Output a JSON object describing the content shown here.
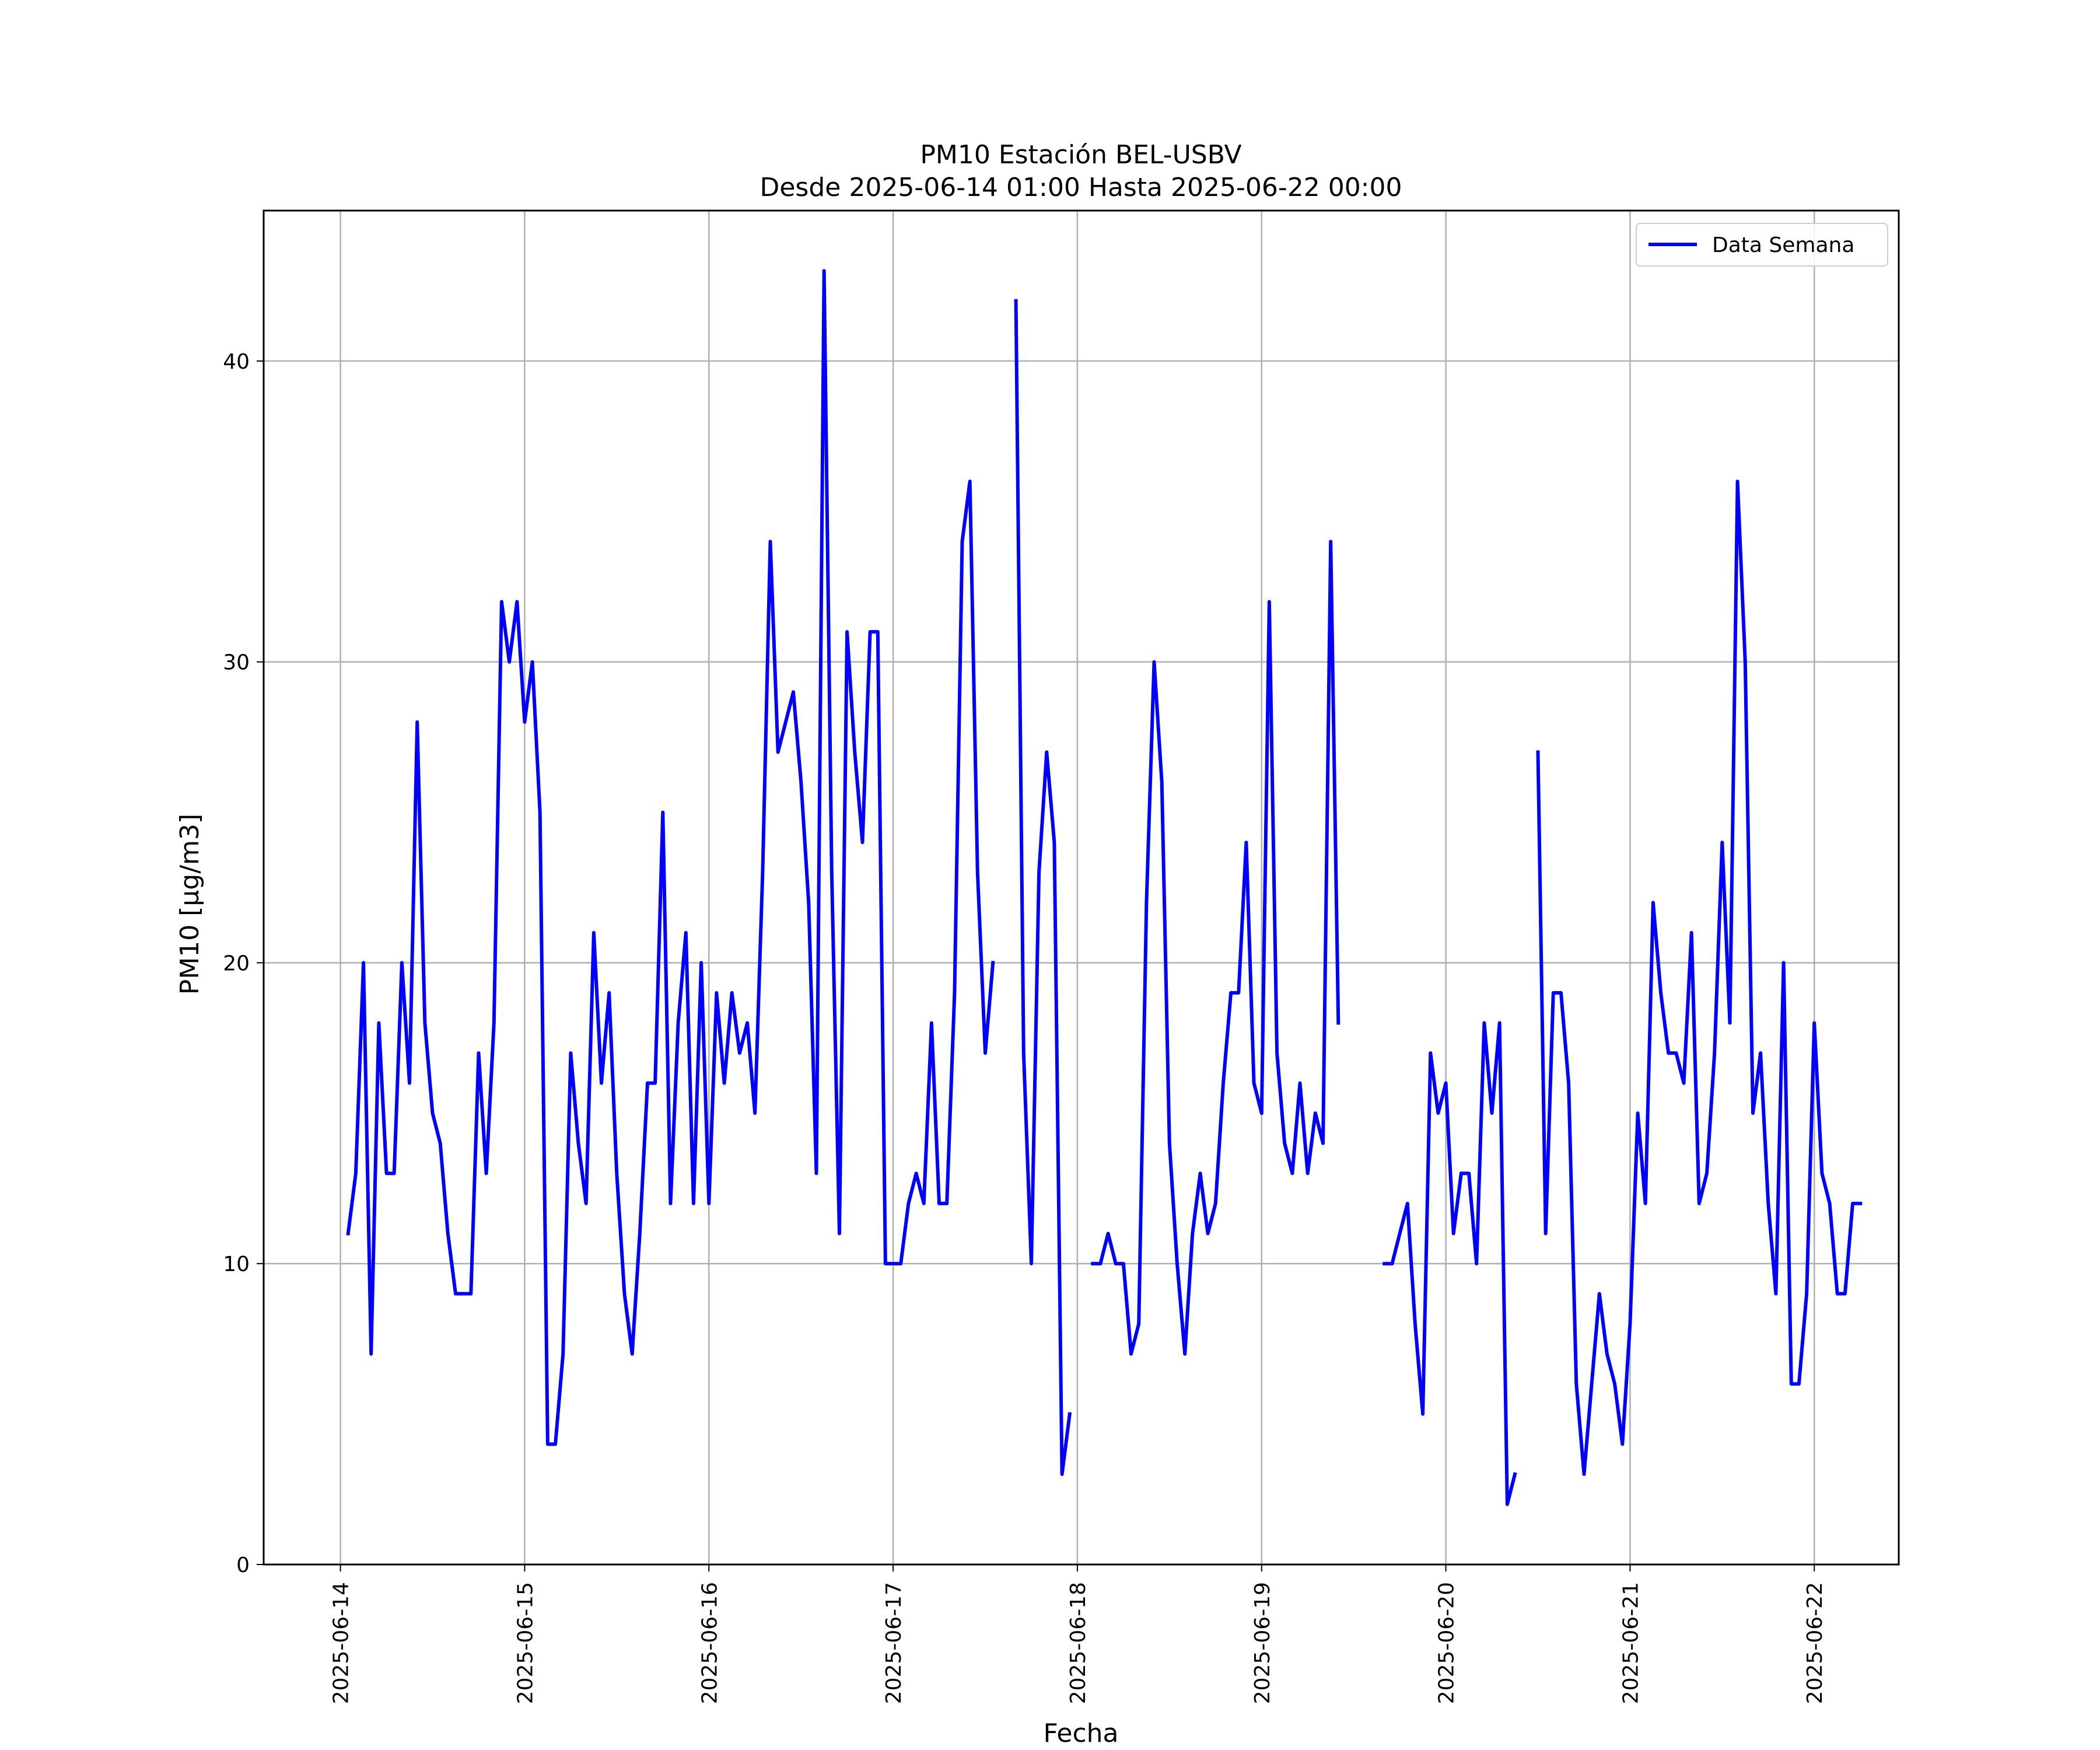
{
  "chart_data": {
    "type": "line",
    "title": "PM10 Estación BEL-USBV",
    "subtitle": "Desde 2025-06-14 01:00 Hasta 2025-06-22 00:00",
    "xlabel": "Fecha",
    "ylabel": "PM10 [μg/m3]",
    "ylim": [
      0,
      45
    ],
    "xlim": [
      "2025-06-13 14:00",
      "2025-06-22 11:00"
    ],
    "grid": true,
    "legend_position": "top-right",
    "line_color": "#0000ff",
    "x_ticks": [
      "2025-06-14",
      "2025-06-15",
      "2025-06-16",
      "2025-06-17",
      "2025-06-18",
      "2025-06-19",
      "2025-06-20",
      "2025-06-21",
      "2025-06-22"
    ],
    "y_ticks": [
      "0",
      "10",
      "20",
      "30",
      "40"
    ],
    "series": [
      {
        "name": "Data Semana",
        "x_start": "2025-06-14 01:00",
        "x_step_hours": 1,
        "values": [
          11,
          13,
          20,
          7,
          18,
          13,
          13,
          20,
          16,
          28,
          18,
          15,
          14,
          11,
          9,
          9,
          9,
          17,
          13,
          18,
          32,
          30,
          32,
          28,
          30,
          25,
          4,
          4,
          7,
          17,
          14,
          12,
          21,
          16,
          19,
          13,
          9,
          7,
          11,
          16,
          16,
          25,
          12,
          18,
          21,
          12,
          20,
          12,
          19,
          16,
          19,
          17,
          18,
          15,
          23,
          34,
          27,
          28,
          29,
          26,
          22,
          13,
          43,
          23,
          11,
          31,
          27,
          24,
          31,
          31,
          10,
          10,
          10,
          12,
          13,
          12,
          18,
          12,
          12,
          19,
          34,
          36,
          23,
          17,
          20,
          null,
          null,
          42,
          17,
          10,
          23,
          27,
          24,
          3,
          5,
          null,
          null,
          10,
          10,
          11,
          10,
          10,
          7,
          8,
          22,
          30,
          26,
          14,
          10,
          7,
          11,
          13,
          11,
          12,
          16,
          19,
          19,
          24,
          16,
          15,
          32,
          17,
          14,
          13,
          16,
          13,
          15,
          14,
          34,
          18,
          null,
          null,
          null,
          null,
          null,
          10,
          10,
          11,
          12,
          8,
          5,
          17,
          15,
          16,
          11,
          13,
          13,
          10,
          18,
          15,
          18,
          2,
          3,
          null,
          null,
          27,
          11,
          19,
          19,
          16,
          6,
          3,
          6,
          9,
          7,
          6,
          4,
          8,
          15,
          12,
          22,
          19,
          17,
          17,
          16,
          21,
          12,
          13,
          17,
          24,
          18,
          36,
          30,
          15,
          17,
          12,
          9,
          20,
          6,
          6,
          9,
          18,
          13,
          12,
          9,
          9,
          12,
          12
        ]
      }
    ]
  }
}
